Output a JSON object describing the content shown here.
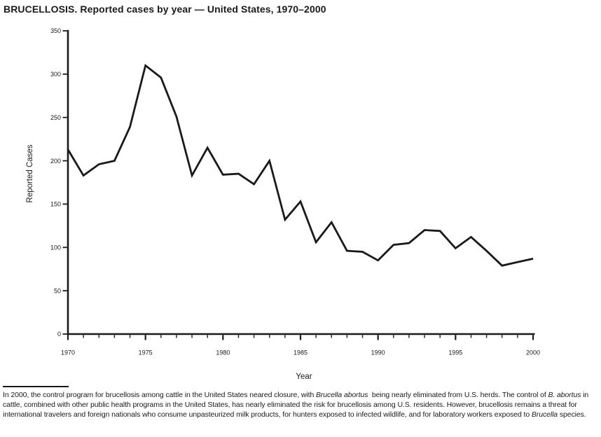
{
  "title": "BRUCELLOSIS. Reported cases by year — United States, 1970–2000",
  "chart_data": {
    "type": "line",
    "title": "BRUCELLOSIS. Reported cases by year — United States, 1970–2000",
    "x": [
      1970,
      1971,
      1972,
      1973,
      1974,
      1975,
      1976,
      1977,
      1978,
      1979,
      1980,
      1981,
      1982,
      1983,
      1984,
      1985,
      1986,
      1987,
      1988,
      1989,
      1990,
      1991,
      1992,
      1993,
      1994,
      1995,
      1996,
      1997,
      1998,
      1999,
      2000
    ],
    "values": [
      213,
      183,
      196,
      200,
      239,
      310,
      296,
      251,
      183,
      215,
      184,
      185,
      173,
      200,
      132,
      153,
      106,
      129,
      96,
      95,
      85,
      103,
      105,
      120,
      119,
      99,
      112,
      96,
      79,
      83,
      87
    ],
    "xlabel": "Year",
    "ylabel": "Reported Cases",
    "xlim": [
      1970,
      2000
    ],
    "ylim": [
      0,
      350
    ],
    "y_tick_step": 50,
    "x_major_tick_step": 5,
    "x_minor_tick_step": 1,
    "y_tick_labels": [
      "0",
      "50",
      "100",
      "150",
      "200",
      "250",
      "300",
      "350"
    ],
    "x_tick_labels": [
      "1970",
      "1975",
      "1980",
      "1985",
      "1990",
      "1995",
      "2000"
    ],
    "grid": false,
    "legend": "none",
    "line_color": "#1a1a1a",
    "axis_color": "#1a1a1a"
  },
  "footnote": {
    "segments": [
      {
        "text": "In 2000, the control program for brucellosis among cattle in the United States neared closure, with ",
        "italic": false
      },
      {
        "text": "Brucella abortus",
        "italic": true
      },
      {
        "text": "  being nearly eliminated from U.S. herds. The control of ",
        "italic": false
      },
      {
        "text": "B. abortus",
        "italic": true
      },
      {
        "text": " in cattle, combined with other public health programs in the United States, has nearly eliminated the risk for brucellosis among U.S. residents. However, brucellosis remains a threat for international travelers and foreign nationals who consume unpasteurized milk products, for hunters exposed to infected wildlife, and for laboratory workers exposed to ",
        "italic": false
      },
      {
        "text": "Brucella",
        "italic": true
      },
      {
        "text": " species.",
        "italic": false
      }
    ]
  }
}
